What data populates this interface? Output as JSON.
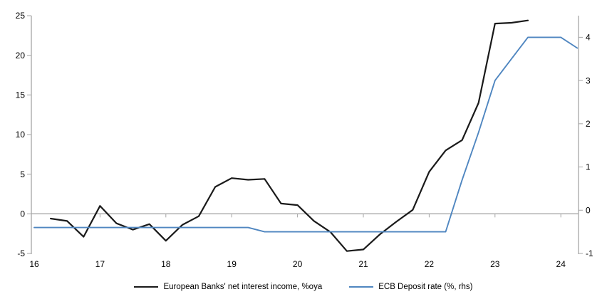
{
  "chart_data": {
    "type": "line",
    "title": "",
    "x_axis": {
      "tick_labels": [
        "16",
        "17",
        "18",
        "19",
        "20",
        "21",
        "22",
        "23",
        "24"
      ],
      "tick_years": [
        16,
        17,
        18,
        19,
        20,
        21,
        22,
        23,
        24
      ],
      "range": [
        16,
        24.3
      ],
      "grid": false
    },
    "left_axis": {
      "ticks": [
        25,
        20,
        15,
        10,
        5,
        0,
        -5
      ],
      "range": [
        -5,
        25
      ],
      "grid": false
    },
    "right_axis": {
      "ticks": [
        4,
        3,
        2,
        1,
        0,
        -1
      ],
      "range": [
        -1,
        4.5
      ],
      "grid": false
    },
    "zero_line": {
      "value": 0,
      "axis": "left"
    },
    "legend_position": "bottom-center",
    "series": [
      {
        "name": "European Banks' net interest income, %oya",
        "axis": "left",
        "color": "#1a1a1a",
        "width": 2.2,
        "x": [
          16.25,
          16.5,
          16.75,
          17.0,
          17.25,
          17.5,
          17.75,
          18.0,
          18.25,
          18.5,
          18.75,
          19.0,
          19.25,
          19.5,
          19.75,
          20.0,
          20.25,
          20.5,
          20.75,
          21.0,
          21.25,
          21.5,
          21.75,
          22.0,
          22.25,
          22.5,
          22.75,
          23.0,
          23.25,
          23.5
        ],
        "values": [
          -0.6,
          -0.9,
          -2.9,
          1.0,
          -1.2,
          -2.0,
          -1.3,
          -3.4,
          -1.4,
          -0.3,
          3.4,
          4.5,
          4.3,
          4.4,
          1.3,
          1.1,
          -0.9,
          -2.3,
          -4.7,
          -4.5,
          -2.6,
          -1.0,
          0.5,
          5.3,
          8.0,
          9.3,
          14.0,
          24.0,
          24.1,
          24.4
        ]
      },
      {
        "name": "ECB Deposit rate (%, rhs)",
        "axis": "right",
        "color": "#4f86c0",
        "width": 1.9,
        "x": [
          16.0,
          16.25,
          16.5,
          16.75,
          17.0,
          17.25,
          17.5,
          17.75,
          18.0,
          18.25,
          18.5,
          18.75,
          19.0,
          19.25,
          19.5,
          19.75,
          20.0,
          20.25,
          20.5,
          20.75,
          21.0,
          21.25,
          21.5,
          21.75,
          22.0,
          22.25,
          22.5,
          22.75,
          23.0,
          23.25,
          23.5,
          23.75,
          24.0,
          24.25
        ],
        "values": [
          -0.4,
          -0.4,
          -0.4,
          -0.4,
          -0.4,
          -0.4,
          -0.4,
          -0.4,
          -0.4,
          -0.4,
          -0.4,
          -0.4,
          -0.4,
          -0.4,
          -0.5,
          -0.5,
          -0.5,
          -0.5,
          -0.5,
          -0.5,
          -0.5,
          -0.5,
          -0.5,
          -0.5,
          -0.5,
          -0.5,
          0.7,
          1.8,
          3.0,
          3.5,
          4.0,
          4.0,
          4.0,
          3.75
        ]
      }
    ]
  },
  "colors": {
    "axis_gray": "#a6a6a6",
    "black_line": "#1a1a1a",
    "blue_line": "#4f86c0",
    "text": "#000000"
  }
}
